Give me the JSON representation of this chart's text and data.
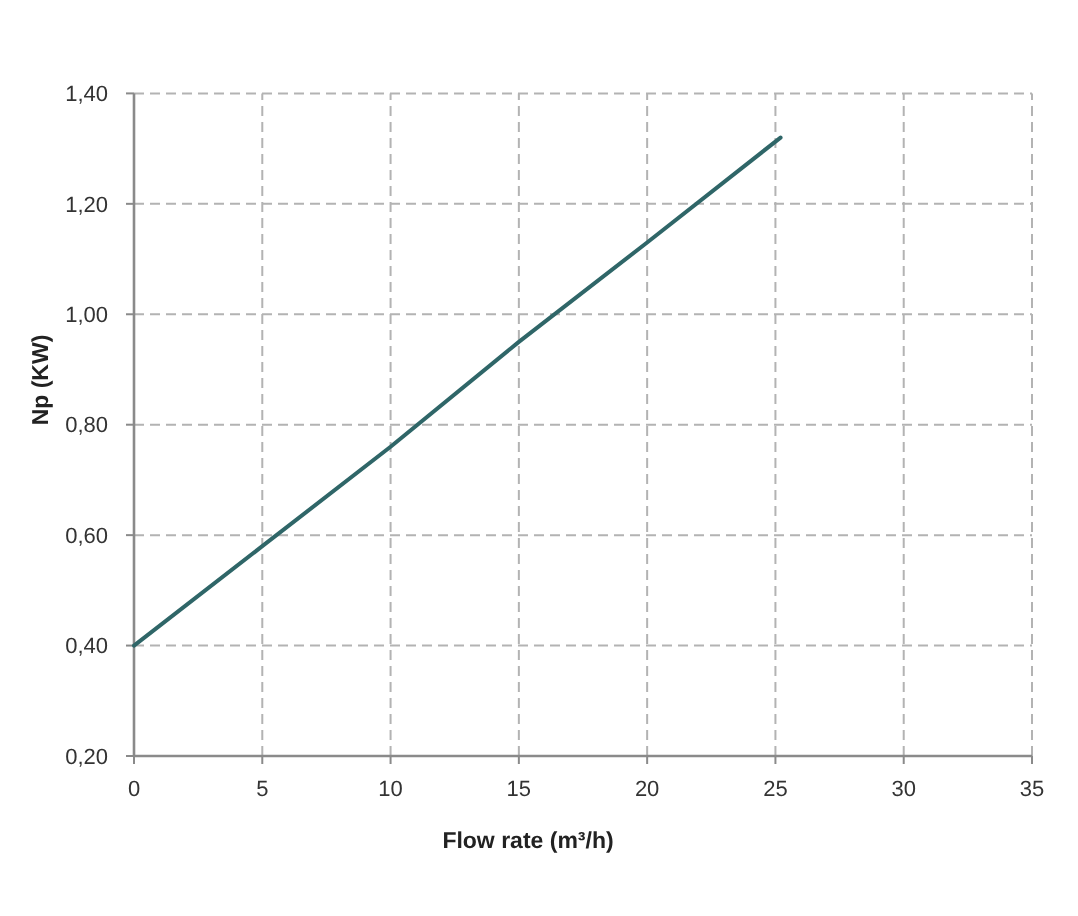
{
  "chart_data": {
    "type": "line",
    "xlabel": "Flow rate (m³/h)",
    "ylabel": "Np (KW)",
    "x": [
      0,
      5,
      10,
      15,
      20,
      25.2
    ],
    "series": [
      {
        "color": "#2f6668",
        "values": [
          0.4,
          0.58,
          0.76,
          0.95,
          1.13,
          1.32
        ]
      }
    ],
    "xlim": [
      0,
      35
    ],
    "xticks": [
      0,
      5,
      10,
      15,
      20,
      25,
      30,
      35
    ],
    "ylim": [
      0.2,
      1.4
    ],
    "yticks": [
      {
        "value": 0.2,
        "label": "0,20"
      },
      {
        "value": 0.4,
        "label": "0,40"
      },
      {
        "value": 0.6,
        "label": "0,60"
      },
      {
        "value": 0.8,
        "label": "0,80"
      },
      {
        "value": 1.0,
        "label": "1,00"
      },
      {
        "value": 1.2,
        "label": "1,20"
      },
      {
        "value": 1.4,
        "label": "1,40"
      }
    ],
    "grid": true
  }
}
